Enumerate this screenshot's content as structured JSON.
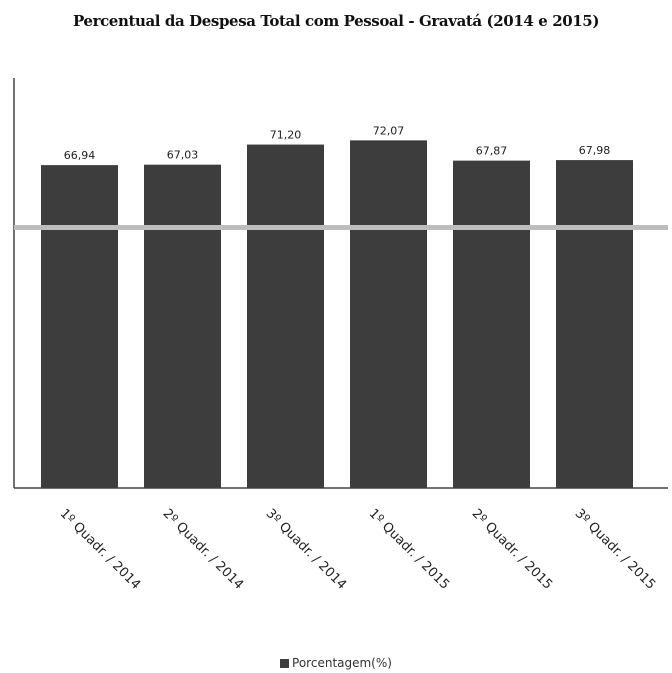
{
  "chart_data": {
    "type": "bar",
    "title": "Percentual da Despesa Total com Pessoal - Gravatá (2014 e 2015)",
    "categories": [
      "1º Quadr. / 2014",
      "2º Quadr. / 2014",
      "3º Quadr. / 2014",
      "1º Quadr. / 2015",
      "2º Quadr. / 2015",
      "3º Quadr. / 2015"
    ],
    "series": [
      {
        "name": "Porcentagem(%)",
        "values": [
          66.94,
          67.03,
          71.2,
          72.07,
          67.87,
          67.98
        ],
        "value_labels": [
          "66,94",
          "67,03",
          "71,20",
          "72,07",
          "67,87",
          "67,98"
        ]
      }
    ],
    "reference_line": 54,
    "ylim": [
      0,
      85
    ],
    "xlabel": "",
    "ylabel": "",
    "grid": false,
    "legend_position": "bottom",
    "colors": {
      "bar": "#3d3d3d",
      "reference_line": "#bdbdbd",
      "axis": "#444444"
    }
  }
}
